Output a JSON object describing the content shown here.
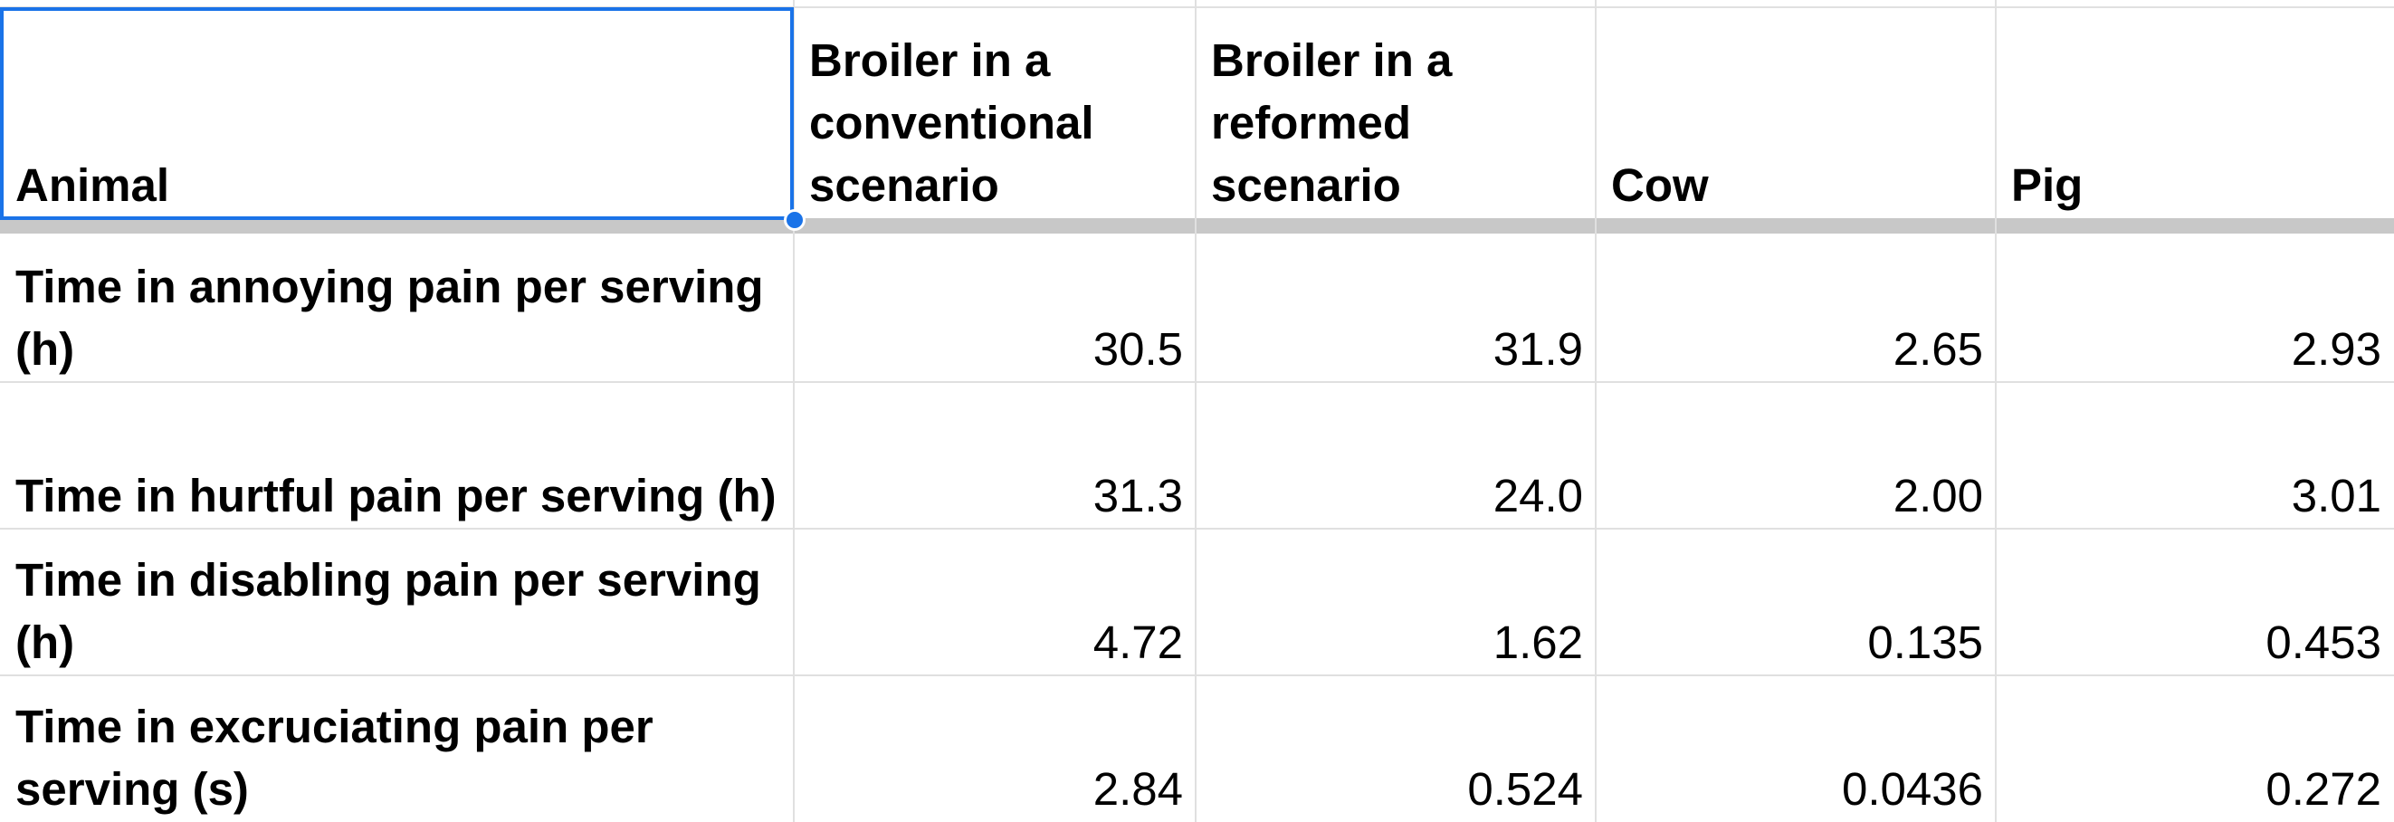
{
  "table": {
    "header": [
      "Animal",
      "Broiler in a conventional scenario",
      "Broiler in a reformed scenario",
      "Cow",
      "Pig"
    ],
    "rows": [
      [
        "Time in annoying pain per serving (h)",
        "30.5",
        "31.9",
        "2.65",
        "2.93"
      ],
      [
        "Time in hurtful pain per serving (h)",
        "31.3",
        "24.0",
        "2.00",
        "3.01"
      ],
      [
        "Time in disabling pain per serving (h)",
        "4.72",
        "1.62",
        "0.135",
        "0.453"
      ],
      [
        "Time in excruciating pain per serving (s)",
        "2.84",
        "0.524",
        "0.0436",
        "0.272"
      ]
    ]
  }
}
